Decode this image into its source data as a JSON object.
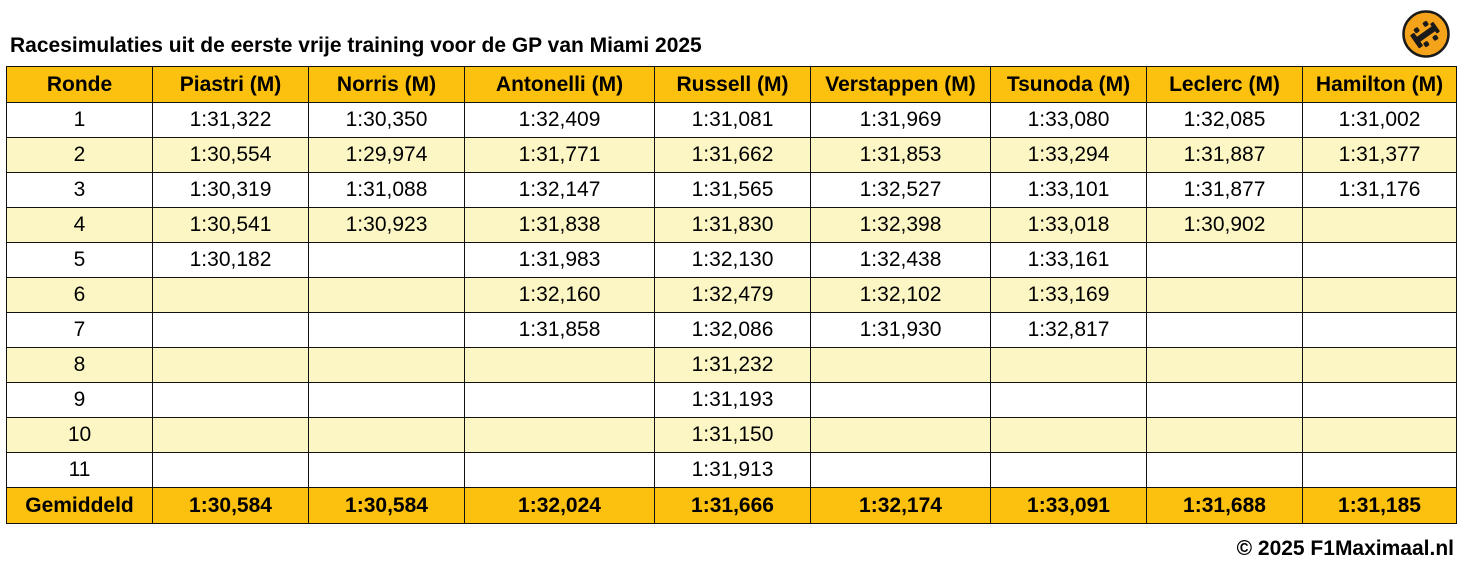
{
  "title": "Racesimulaties uit de eerste vrije training voor de GP van Miami 2025",
  "logo_icon": "f1-car-badge-icon",
  "colors": {
    "header": "#fcc00e",
    "row_alt": "#fbf6c3",
    "row": "#ffffff"
  },
  "table": {
    "headers": [
      "Ronde",
      "Piastri (M)",
      "Norris (M)",
      "Antonelli (M)",
      "Russell (M)",
      "Verstappen (M)",
      "Tsunoda (M)",
      "Leclerc (M)",
      "Hamilton (M)"
    ],
    "rows": [
      [
        "1",
        "1:31,322",
        "1:30,350",
        "1:32,409",
        "1:31,081",
        "1:31,969",
        "1:33,080",
        "1:32,085",
        "1:31,002"
      ],
      [
        "2",
        "1:30,554",
        "1:29,974",
        "1:31,771",
        "1:31,662",
        "1:31,853",
        "1:33,294",
        "1:31,887",
        "1:31,377"
      ],
      [
        "3",
        "1:30,319",
        "1:31,088",
        "1:32,147",
        "1:31,565",
        "1:32,527",
        "1:33,101",
        "1:31,877",
        "1:31,176"
      ],
      [
        "4",
        "1:30,541",
        "1:30,923",
        "1:31,838",
        "1:31,830",
        "1:32,398",
        "1:33,018",
        "1:30,902",
        ""
      ],
      [
        "5",
        "1:30,182",
        "",
        "1:31,983",
        "1:32,130",
        "1:32,438",
        "1:33,161",
        "",
        ""
      ],
      [
        "6",
        "",
        "",
        "1:32,160",
        "1:32,479",
        "1:32,102",
        "1:33,169",
        "",
        ""
      ],
      [
        "7",
        "",
        "",
        "1:31,858",
        "1:32,086",
        "1:31,930",
        "1:32,817",
        "",
        ""
      ],
      [
        "8",
        "",
        "",
        "",
        "1:31,232",
        "",
        "",
        "",
        ""
      ],
      [
        "9",
        "",
        "",
        "",
        "1:31,193",
        "",
        "",
        "",
        ""
      ],
      [
        "10",
        "",
        "",
        "",
        "1:31,150",
        "",
        "",
        "",
        ""
      ],
      [
        "11",
        "",
        "",
        "",
        "1:31,913",
        "",
        "",
        "",
        ""
      ]
    ],
    "footer": [
      "Gemiddeld",
      "1:30,584",
      "1:30,584",
      "1:32,024",
      "1:31,666",
      "1:32,174",
      "1:33,091",
      "1:31,688",
      "1:31,185"
    ]
  },
  "copyright": "© 2025 F1Maximaal.nl"
}
